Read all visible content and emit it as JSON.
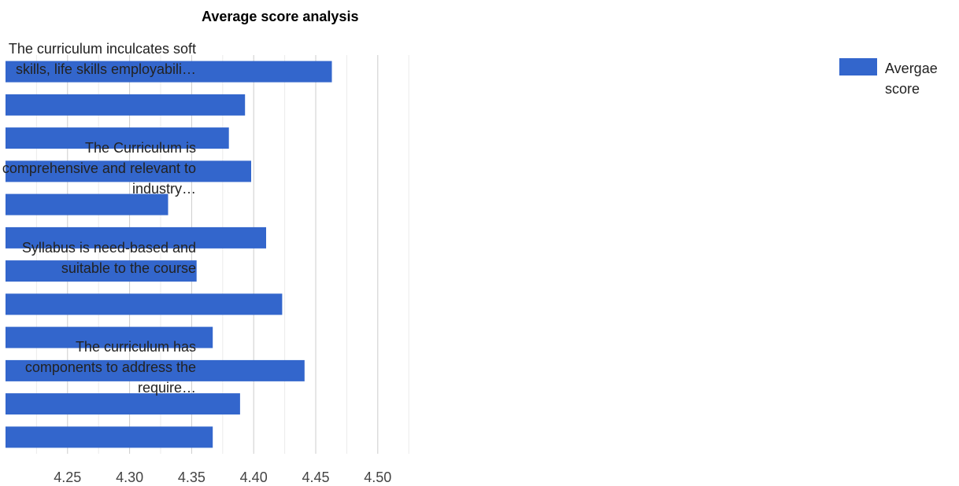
{
  "chart_data": {
    "type": "bar",
    "orientation": "horizontal",
    "title": "Average score analysis",
    "xlabel": "",
    "ylabel": "",
    "xlim": [
      4.2,
      4.57
    ],
    "xticks": [
      4.25,
      4.3,
      4.35,
      4.4,
      4.45,
      4.5
    ],
    "xtick_labels": [
      "4.25",
      "4.30",
      "4.35",
      "4.40",
      "4.45",
      "4.50"
    ],
    "grid": true,
    "legend_position": "right",
    "category_labels": [
      "The curriculum inculcates soft skills, life skills employabili…",
      "The Curriculum is comprehensive and relevant to industry…",
      "Syllabus is need-based and suitable to the course",
      "The curriculum has components to address the require…"
    ],
    "series": [
      {
        "name": "Avergae score",
        "color": "#3366cc",
        "values": [
          4.463,
          4.393,
          4.38,
          4.398,
          4.331,
          4.41,
          4.354,
          4.423,
          4.367,
          4.441,
          4.389,
          4.367
        ]
      }
    ]
  }
}
